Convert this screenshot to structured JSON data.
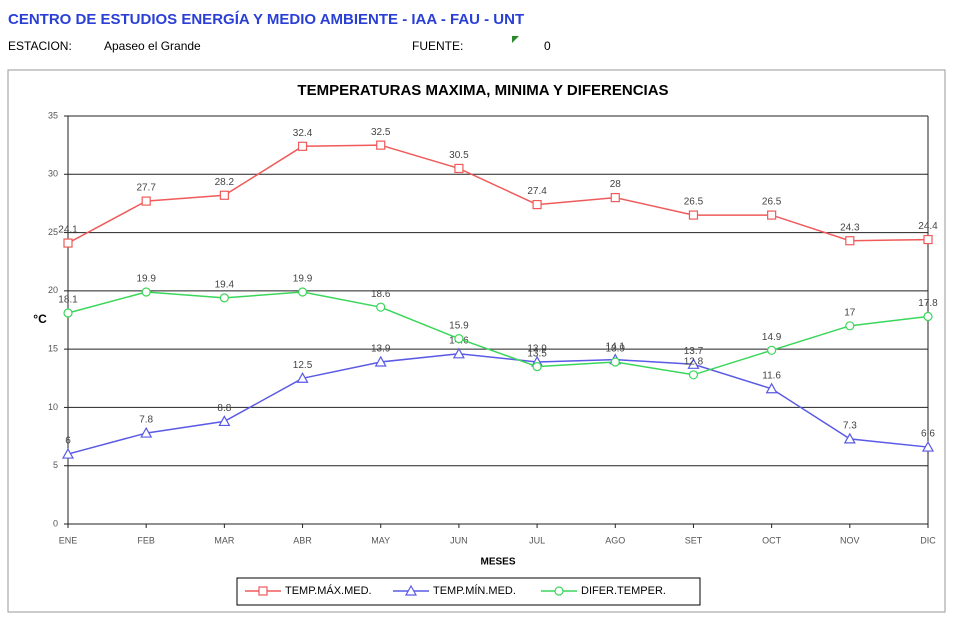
{
  "header": {
    "title": "CENTRO DE ESTUDIOS ENERGÍA Y MEDIO AMBIENTE - IAA - FAU - UNT",
    "station_label": "ESTACION:",
    "station": "Apaseo el Grande",
    "source_label": "FUENTE:",
    "source": "0"
  },
  "chart_data": {
    "type": "line",
    "title": "TEMPERATURAS MAXIMA, MINIMA Y DIFERENCIAS",
    "x_label": "MESES",
    "y_label": "°C",
    "categories": [
      "ENE",
      "FEB",
      "MAR",
      "ABR",
      "MAY",
      "JUN",
      "JUL",
      "AGO",
      "SET",
      "OCT",
      "NOV",
      "DIC"
    ],
    "series": [
      {
        "name": "TEMP.MÁX.MED.",
        "color": "#f05a5a",
        "marker": "square",
        "values": [
          24.1,
          27.7,
          28.2,
          32.4,
          32.5,
          30.5,
          27.4,
          28,
          26.5,
          26.5,
          24.3,
          24.4
        ]
      },
      {
        "name": "TEMP.MÍN.MED.",
        "color": "#5a5ae6",
        "marker": "triangle",
        "values": [
          6,
          7.8,
          8.8,
          12.5,
          13.9,
          14.6,
          13.9,
          14.1,
          13.7,
          11.6,
          7.3,
          6.6
        ]
      },
      {
        "name": "DIFER.TEMPER.",
        "color": "#3ad65a",
        "marker": "circle",
        "values": [
          18.1,
          19.9,
          19.4,
          19.9,
          18.6,
          15.9,
          13.5,
          13.9,
          12.8,
          14.9,
          17,
          17.8
        ]
      }
    ],
    "ylim": [
      0,
      35
    ],
    "yticks": [
      0,
      5,
      10,
      15,
      20,
      25,
      30,
      35
    ],
    "grid": true,
    "legend": "bottom"
  }
}
